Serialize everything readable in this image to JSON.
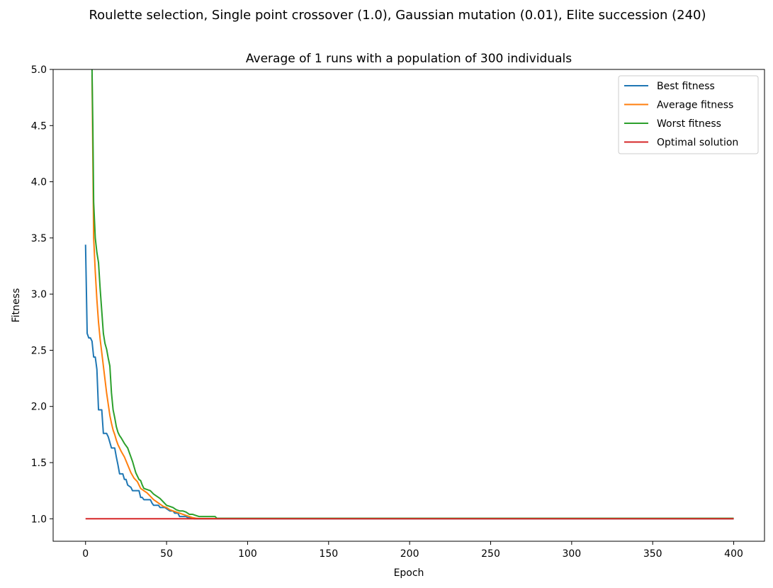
{
  "suptitle": "Roulette selection, Single point crossover (1.0), Gaussian mutation (0.01), Elite succession (240)",
  "chart_data": {
    "type": "line",
    "title": "Average of 1 runs with a population of 300 individuals",
    "xlabel": "Epoch",
    "ylabel": "Fitness",
    "xlim": [
      -20,
      419
    ],
    "ylim": [
      0.8,
      5.0
    ],
    "xticks": [
      0,
      50,
      100,
      150,
      200,
      250,
      300,
      350,
      400
    ],
    "yticks": [
      1.0,
      1.5,
      2.0,
      2.5,
      3.0,
      3.5,
      4.0,
      4.5,
      5.0
    ],
    "ytick_labels": [
      "1.0",
      "1.5",
      "2.0",
      "2.5",
      "3.0",
      "3.5",
      "4.0",
      "4.5",
      "5.0"
    ],
    "grid": false,
    "legend_position": "top-right",
    "series": [
      {
        "name": "Best fitness",
        "color": "#1f77b4",
        "points": [
          [
            0,
            3.44
          ],
          [
            1,
            2.65
          ],
          [
            2,
            2.61
          ],
          [
            3,
            2.61
          ],
          [
            4,
            2.58
          ],
          [
            5,
            2.44
          ],
          [
            6,
            2.44
          ],
          [
            7,
            2.33
          ],
          [
            8,
            1.97
          ],
          [
            10,
            1.97
          ],
          [
            11,
            1.76
          ],
          [
            13,
            1.76
          ],
          [
            14,
            1.73
          ],
          [
            15,
            1.68
          ],
          [
            16,
            1.63
          ],
          [
            18,
            1.63
          ],
          [
            19,
            1.55
          ],
          [
            20,
            1.48
          ],
          [
            21,
            1.4
          ],
          [
            23,
            1.4
          ],
          [
            24,
            1.35
          ],
          [
            25,
            1.35
          ],
          [
            26,
            1.3
          ],
          [
            28,
            1.28
          ],
          [
            29,
            1.25
          ],
          [
            33,
            1.25
          ],
          [
            34,
            1.19
          ],
          [
            35,
            1.19
          ],
          [
            36,
            1.17
          ],
          [
            40,
            1.17
          ],
          [
            41,
            1.14
          ],
          [
            42,
            1.12
          ],
          [
            45,
            1.12
          ],
          [
            46,
            1.1
          ],
          [
            49,
            1.1
          ],
          [
            50,
            1.09
          ],
          [
            52,
            1.07
          ],
          [
            54,
            1.07
          ],
          [
            55,
            1.05
          ],
          [
            57,
            1.05
          ],
          [
            58,
            1.02
          ],
          [
            62,
            1.02
          ],
          [
            63,
            1.01
          ],
          [
            66,
            1.01
          ],
          [
            67,
            1.0
          ],
          [
            400,
            1.0
          ]
        ]
      },
      {
        "name": "Average fitness",
        "color": "#ff7f0e",
        "points": [
          [
            4,
            4.95
          ],
          [
            5,
            3.5
          ],
          [
            6,
            3.2
          ],
          [
            7,
            2.95
          ],
          [
            8,
            2.75
          ],
          [
            9,
            2.6
          ],
          [
            10,
            2.48
          ],
          [
            11,
            2.36
          ],
          [
            12,
            2.24
          ],
          [
            13,
            2.12
          ],
          [
            14,
            2.02
          ],
          [
            15,
            1.92
          ],
          [
            16,
            1.85
          ],
          [
            17,
            1.79
          ],
          [
            18,
            1.75
          ],
          [
            19,
            1.7
          ],
          [
            20,
            1.66
          ],
          [
            22,
            1.6
          ],
          [
            24,
            1.55
          ],
          [
            26,
            1.48
          ],
          [
            28,
            1.41
          ],
          [
            30,
            1.36
          ],
          [
            32,
            1.33
          ],
          [
            34,
            1.27
          ],
          [
            36,
            1.25
          ],
          [
            38,
            1.23
          ],
          [
            40,
            1.2
          ],
          [
            42,
            1.17
          ],
          [
            44,
            1.15
          ],
          [
            46,
            1.13
          ],
          [
            48,
            1.11
          ],
          [
            50,
            1.1
          ],
          [
            52,
            1.08
          ],
          [
            54,
            1.07
          ],
          [
            56,
            1.06
          ],
          [
            58,
            1.05
          ],
          [
            60,
            1.04
          ],
          [
            62,
            1.03
          ],
          [
            64,
            1.02
          ],
          [
            66,
            1.01
          ],
          [
            68,
            1.005
          ],
          [
            70,
            1.002
          ],
          [
            400,
            1.002
          ]
        ]
      },
      {
        "name": "Worst fitness",
        "color": "#2ca02c",
        "points": [
          [
            4,
            5.0
          ],
          [
            4.5,
            4.5
          ],
          [
            5,
            3.82
          ],
          [
            6,
            3.5
          ],
          [
            7,
            3.37
          ],
          [
            8,
            3.28
          ],
          [
            9,
            3.05
          ],
          [
            10,
            2.85
          ],
          [
            11,
            2.65
          ],
          [
            12,
            2.56
          ],
          [
            13,
            2.51
          ],
          [
            14,
            2.43
          ],
          [
            15,
            2.36
          ],
          [
            16,
            2.12
          ],
          [
            17,
            1.97
          ],
          [
            18,
            1.9
          ],
          [
            19,
            1.82
          ],
          [
            20,
            1.77
          ],
          [
            21,
            1.74
          ],
          [
            22,
            1.72
          ],
          [
            24,
            1.67
          ],
          [
            26,
            1.63
          ],
          [
            27,
            1.59
          ],
          [
            28,
            1.55
          ],
          [
            29,
            1.51
          ],
          [
            30,
            1.46
          ],
          [
            31,
            1.41
          ],
          [
            32,
            1.38
          ],
          [
            33,
            1.35
          ],
          [
            34,
            1.34
          ],
          [
            35,
            1.3
          ],
          [
            36,
            1.27
          ],
          [
            38,
            1.26
          ],
          [
            40,
            1.25
          ],
          [
            42,
            1.22
          ],
          [
            44,
            1.2
          ],
          [
            46,
            1.18
          ],
          [
            48,
            1.15
          ],
          [
            50,
            1.12
          ],
          [
            52,
            1.11
          ],
          [
            54,
            1.1
          ],
          [
            56,
            1.08
          ],
          [
            58,
            1.07
          ],
          [
            60,
            1.07
          ],
          [
            62,
            1.06
          ],
          [
            64,
            1.04
          ],
          [
            66,
            1.04
          ],
          [
            68,
            1.03
          ],
          [
            70,
            1.02
          ],
          [
            80,
            1.02
          ],
          [
            81,
            1.004
          ],
          [
            400,
            1.004
          ]
        ]
      },
      {
        "name": "Optimal solution",
        "color": "#d62728",
        "points": [
          [
            0,
            1.0
          ],
          [
            400,
            1.0
          ]
        ]
      }
    ]
  }
}
